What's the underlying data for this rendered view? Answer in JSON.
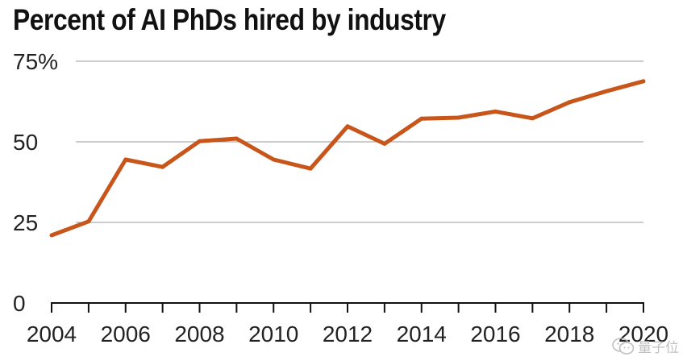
{
  "chart_data": {
    "type": "line",
    "title": "Percent of AI PhDs hired by industry",
    "xlabel": "",
    "ylabel": "",
    "x": [
      2004,
      2005,
      2006,
      2007,
      2008,
      2009,
      2010,
      2011,
      2012,
      2013,
      2014,
      2015,
      2016,
      2017,
      2018,
      2019,
      2020
    ],
    "series": [
      {
        "values": [
          21,
          25.3,
          44.5,
          42.2,
          50.2,
          51,
          44.5,
          41.7,
          54.8,
          49.4,
          57.2,
          57.5,
          59.4,
          57.3,
          62.3,
          65.7,
          68.8
        ]
      }
    ],
    "xlim": [
      2004,
      2020
    ],
    "ylim": [
      0,
      75
    ],
    "yticks": [
      0,
      25,
      50,
      75
    ],
    "ytick_labels": [
      "0",
      "25",
      "50",
      "75%"
    ],
    "xticks": [
      2004,
      2006,
      2008,
      2010,
      2012,
      2014,
      2016,
      2018,
      2020
    ],
    "xtick_labels": [
      "2004",
      "2006",
      "2008",
      "2010",
      "2012",
      "2014",
      "2016",
      "2018",
      "2020"
    ],
    "grid": true,
    "legend": "none",
    "line_color": "#c8561b"
  },
  "watermark": {
    "text": "量子位",
    "icon": "wechat-icon"
  }
}
